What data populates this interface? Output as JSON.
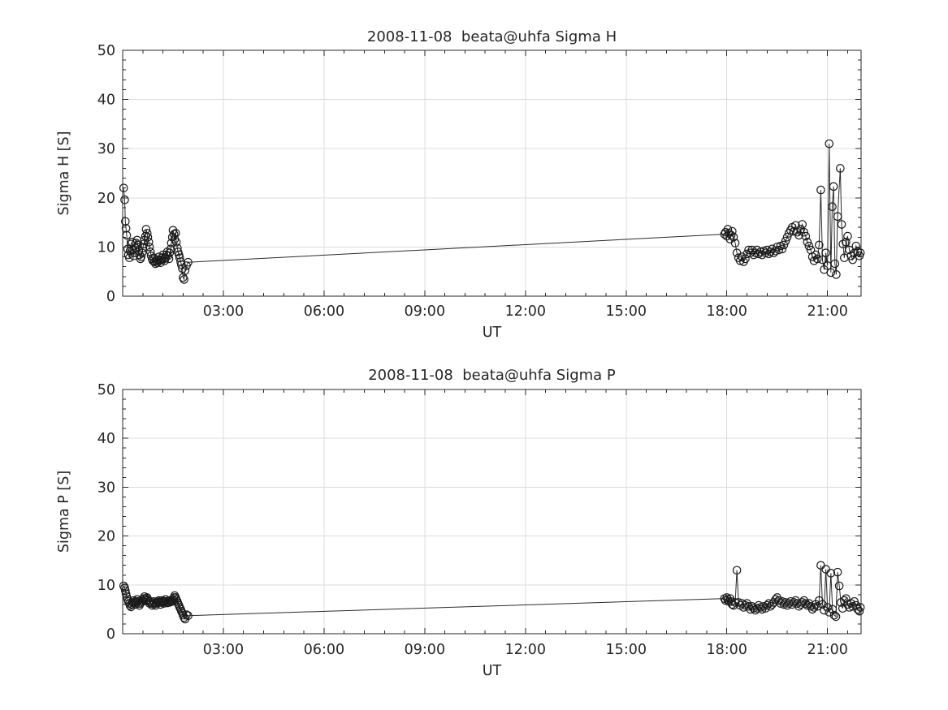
{
  "figure": {
    "background": "#ffffff",
    "text_color": "#262626",
    "axis_color": "#262626"
  },
  "chart_data": [
    {
      "type": "line",
      "title": "2008-11-08  beata@uhfa Sigma H",
      "xlabel": "UT",
      "ylabel": "Sigma H [S]",
      "xlim_hours": [
        0,
        22
      ],
      "ylim": [
        0,
        50
      ],
      "grid": true,
      "legend_position": "none",
      "marker": "open-circle",
      "line_color": "#2a2a2a",
      "marker_color": "#1a1a1a",
      "grid_color": "#dcdcdc",
      "x_ticks": [
        {
          "hour": 3,
          "label": "03:00"
        },
        {
          "hour": 6,
          "label": "06:00"
        },
        {
          "hour": 9,
          "label": "09:00"
        },
        {
          "hour": 12,
          "label": "12:00"
        },
        {
          "hour": 15,
          "label": "15:00"
        },
        {
          "hour": 18,
          "label": "18:00"
        },
        {
          "hour": 21,
          "label": "21:00"
        }
      ],
      "y_ticks": [
        0,
        10,
        20,
        30,
        40,
        50
      ],
      "x_minor_step_hours": 0.6,
      "y_minor_step": 2,
      "points": [
        [
          0.03,
          22.0
        ],
        [
          0.06,
          19.6
        ],
        [
          0.08,
          15.2
        ],
        [
          0.1,
          13.8
        ],
        [
          0.12,
          12.4
        ],
        [
          0.15,
          9.6
        ],
        [
          0.17,
          8.4
        ],
        [
          0.2,
          7.8
        ],
        [
          0.22,
          9.2
        ],
        [
          0.25,
          10.6
        ],
        [
          0.28,
          11.0
        ],
        [
          0.3,
          9.4
        ],
        [
          0.33,
          8.2
        ],
        [
          0.35,
          8.8
        ],
        [
          0.38,
          9.8
        ],
        [
          0.4,
          10.8
        ],
        [
          0.43,
          11.4
        ],
        [
          0.45,
          10.4
        ],
        [
          0.48,
          9.2
        ],
        [
          0.5,
          8.4
        ],
        [
          0.53,
          7.6
        ],
        [
          0.55,
          8.0
        ],
        [
          0.58,
          8.8
        ],
        [
          0.6,
          9.8
        ],
        [
          0.63,
          10.6
        ],
        [
          0.65,
          11.4
        ],
        [
          0.68,
          12.2
        ],
        [
          0.7,
          13.6
        ],
        [
          0.73,
          12.8
        ],
        [
          0.75,
          12.0
        ],
        [
          0.78,
          11.0
        ],
        [
          0.8,
          10.0
        ],
        [
          0.83,
          9.0
        ],
        [
          0.85,
          8.2
        ],
        [
          0.88,
          7.6
        ],
        [
          0.9,
          7.2
        ],
        [
          0.93,
          7.8
        ],
        [
          0.95,
          7.0
        ],
        [
          0.98,
          6.6
        ],
        [
          1.0,
          7.2
        ],
        [
          1.03,
          6.8
        ],
        [
          1.05,
          7.4
        ],
        [
          1.08,
          8.0
        ],
        [
          1.1,
          7.2
        ],
        [
          1.13,
          6.8
        ],
        [
          1.15,
          7.4
        ],
        [
          1.18,
          7.8
        ],
        [
          1.2,
          8.4
        ],
        [
          1.23,
          7.6
        ],
        [
          1.25,
          7.2
        ],
        [
          1.28,
          7.8
        ],
        [
          1.3,
          8.4
        ],
        [
          1.33,
          9.0
        ],
        [
          1.35,
          8.2
        ],
        [
          1.38,
          7.6
        ],
        [
          1.4,
          8.8
        ],
        [
          1.43,
          9.6
        ],
        [
          1.45,
          10.8
        ],
        [
          1.48,
          12.0
        ],
        [
          1.5,
          13.4
        ],
        [
          1.53,
          12.6
        ],
        [
          1.55,
          11.6
        ],
        [
          1.58,
          12.8
        ],
        [
          1.6,
          11.0
        ],
        [
          1.63,
          9.8
        ],
        [
          1.65,
          9.0
        ],
        [
          1.68,
          8.4
        ],
        [
          1.7,
          7.8
        ],
        [
          1.73,
          7.0
        ],
        [
          1.75,
          6.4
        ],
        [
          1.78,
          5.6
        ],
        [
          1.8,
          3.8
        ],
        [
          1.83,
          3.4
        ],
        [
          1.86,
          5.2
        ],
        [
          1.9,
          6.2
        ],
        [
          1.95,
          6.9
        ],
        [
          17.93,
          12.6
        ],
        [
          17.96,
          13.0
        ],
        [
          18.0,
          12.2
        ],
        [
          18.03,
          13.6
        ],
        [
          18.06,
          12.8
        ],
        [
          18.1,
          11.6
        ],
        [
          18.13,
          12.4
        ],
        [
          18.16,
          13.2
        ],
        [
          18.2,
          12.0
        ],
        [
          18.25,
          10.8
        ],
        [
          18.3,
          8.8
        ],
        [
          18.35,
          7.8
        ],
        [
          18.4,
          7.2
        ],
        [
          18.45,
          8.0
        ],
        [
          18.5,
          7.0
        ],
        [
          18.55,
          7.6
        ],
        [
          18.6,
          8.6
        ],
        [
          18.65,
          9.4
        ],
        [
          18.7,
          8.8
        ],
        [
          18.75,
          9.4
        ],
        [
          18.8,
          8.4
        ],
        [
          18.85,
          8.8
        ],
        [
          18.9,
          9.4
        ],
        [
          18.95,
          8.6
        ],
        [
          19.0,
          9.0
        ],
        [
          19.05,
          8.4
        ],
        [
          19.1,
          9.2
        ],
        [
          19.15,
          8.8
        ],
        [
          19.2,
          9.4
        ],
        [
          19.25,
          8.6
        ],
        [
          19.3,
          9.0
        ],
        [
          19.35,
          9.6
        ],
        [
          19.4,
          8.8
        ],
        [
          19.45,
          9.2
        ],
        [
          19.5,
          10.0
        ],
        [
          19.55,
          9.4
        ],
        [
          19.6,
          10.2
        ],
        [
          19.65,
          9.6
        ],
        [
          19.7,
          10.4
        ],
        [
          19.75,
          11.2
        ],
        [
          19.8,
          12.0
        ],
        [
          19.85,
          12.8
        ],
        [
          19.9,
          13.4
        ],
        [
          19.95,
          14.0
        ],
        [
          20.0,
          13.2
        ],
        [
          20.05,
          14.4
        ],
        [
          20.1,
          13.0
        ],
        [
          20.15,
          12.4
        ],
        [
          20.2,
          13.6
        ],
        [
          20.25,
          14.6
        ],
        [
          20.3,
          13.0
        ],
        [
          20.35,
          12.2
        ],
        [
          20.4,
          11.0
        ],
        [
          20.45,
          10.2
        ],
        [
          20.5,
          9.4
        ],
        [
          20.55,
          8.0
        ],
        [
          20.6,
          7.2
        ],
        [
          20.65,
          8.4
        ],
        [
          20.7,
          7.6
        ],
        [
          20.75,
          10.4
        ],
        [
          20.8,
          21.6
        ],
        [
          20.85,
          7.4
        ],
        [
          20.9,
          5.4
        ],
        [
          20.95,
          8.8
        ],
        [
          21.0,
          6.2
        ],
        [
          21.05,
          31.0
        ],
        [
          21.1,
          4.8
        ],
        [
          21.14,
          18.2
        ],
        [
          21.18,
          22.3
        ],
        [
          21.22,
          6.6
        ],
        [
          21.26,
          4.4
        ],
        [
          21.3,
          16.2
        ],
        [
          21.38,
          26.0
        ],
        [
          21.42,
          14.6
        ],
        [
          21.46,
          10.6
        ],
        [
          21.5,
          7.8
        ],
        [
          21.55,
          11.0
        ],
        [
          21.6,
          12.2
        ],
        [
          21.65,
          9.4
        ],
        [
          21.7,
          8.2
        ],
        [
          21.75,
          7.4
        ],
        [
          21.8,
          8.8
        ],
        [
          21.85,
          10.2
        ],
        [
          21.9,
          9.0
        ],
        [
          21.95,
          8.2
        ],
        [
          21.98,
          8.8
        ]
      ]
    },
    {
      "type": "line",
      "title": "2008-11-08  beata@uhfa Sigma P",
      "xlabel": "UT",
      "ylabel": "Sigma P [S]",
      "xlim_hours": [
        0,
        22
      ],
      "ylim": [
        0,
        50
      ],
      "grid": true,
      "legend_position": "none",
      "marker": "open-circle",
      "line_color": "#2a2a2a",
      "marker_color": "#1a1a1a",
      "grid_color": "#dcdcdc",
      "x_ticks": [
        {
          "hour": 3,
          "label": "03:00"
        },
        {
          "hour": 6,
          "label": "06:00"
        },
        {
          "hour": 9,
          "label": "09:00"
        },
        {
          "hour": 12,
          "label": "12:00"
        },
        {
          "hour": 15,
          "label": "15:00"
        },
        {
          "hour": 18,
          "label": "18:00"
        },
        {
          "hour": 21,
          "label": "21:00"
        }
      ],
      "y_ticks": [
        0,
        10,
        20,
        30,
        40,
        50
      ],
      "x_minor_step_hours": 0.6,
      "y_minor_step": 2,
      "points": [
        [
          0.03,
          9.8
        ],
        [
          0.06,
          9.4
        ],
        [
          0.08,
          8.8
        ],
        [
          0.1,
          8.2
        ],
        [
          0.12,
          7.6
        ],
        [
          0.15,
          7.0
        ],
        [
          0.17,
          6.6
        ],
        [
          0.2,
          6.2
        ],
        [
          0.22,
          5.8
        ],
        [
          0.25,
          5.5
        ],
        [
          0.28,
          6.0
        ],
        [
          0.3,
          6.4
        ],
        [
          0.33,
          6.8
        ],
        [
          0.35,
          6.4
        ],
        [
          0.38,
          6.0
        ],
        [
          0.4,
          6.6
        ],
        [
          0.43,
          7.0
        ],
        [
          0.45,
          6.6
        ],
        [
          0.48,
          6.2
        ],
        [
          0.5,
          5.8
        ],
        [
          0.53,
          6.2
        ],
        [
          0.55,
          6.6
        ],
        [
          0.58,
          7.0
        ],
        [
          0.6,
          6.6
        ],
        [
          0.63,
          7.2
        ],
        [
          0.65,
          7.6
        ],
        [
          0.68,
          7.2
        ],
        [
          0.7,
          6.8
        ],
        [
          0.73,
          7.4
        ],
        [
          0.75,
          7.0
        ],
        [
          0.78,
          6.6
        ],
        [
          0.8,
          6.2
        ],
        [
          0.83,
          6.6
        ],
        [
          0.85,
          6.2
        ],
        [
          0.88,
          5.8
        ],
        [
          0.9,
          6.2
        ],
        [
          0.93,
          6.6
        ],
        [
          0.95,
          6.2
        ],
        [
          0.98,
          5.8
        ],
        [
          1.0,
          6.2
        ],
        [
          1.03,
          6.6
        ],
        [
          1.05,
          6.4
        ],
        [
          1.08,
          6.8
        ],
        [
          1.1,
          6.4
        ],
        [
          1.13,
          6.0
        ],
        [
          1.15,
          6.4
        ],
        [
          1.18,
          6.8
        ],
        [
          1.2,
          6.6
        ],
        [
          1.23,
          6.2
        ],
        [
          1.25,
          6.6
        ],
        [
          1.28,
          7.0
        ],
        [
          1.3,
          6.6
        ],
        [
          1.33,
          6.3
        ],
        [
          1.35,
          6.7
        ],
        [
          1.38,
          6.4
        ],
        [
          1.4,
          6.8
        ],
        [
          1.43,
          6.5
        ],
        [
          1.45,
          6.9
        ],
        [
          1.48,
          6.6
        ],
        [
          1.5,
          7.0
        ],
        [
          1.53,
          7.4
        ],
        [
          1.55,
          7.8
        ],
        [
          1.58,
          7.4
        ],
        [
          1.6,
          7.0
        ],
        [
          1.63,
          6.6
        ],
        [
          1.65,
          6.2
        ],
        [
          1.68,
          5.8
        ],
        [
          1.7,
          5.4
        ],
        [
          1.73,
          5.0
        ],
        [
          1.75,
          4.6
        ],
        [
          1.78,
          4.2
        ],
        [
          1.8,
          3.8
        ],
        [
          1.83,
          3.3
        ],
        [
          1.86,
          3.0
        ],
        [
          1.9,
          3.9
        ],
        [
          1.95,
          3.7
        ],
        [
          17.93,
          7.2
        ],
        [
          17.96,
          6.8
        ],
        [
          18.0,
          7.4
        ],
        [
          18.03,
          7.0
        ],
        [
          18.06,
          6.6
        ],
        [
          18.1,
          7.2
        ],
        [
          18.13,
          6.6
        ],
        [
          18.16,
          6.0
        ],
        [
          18.2,
          5.8
        ],
        [
          18.25,
          6.4
        ],
        [
          18.3,
          13.0
        ],
        [
          18.35,
          6.4
        ],
        [
          18.4,
          5.8
        ],
        [
          18.45,
          6.2
        ],
        [
          18.5,
          5.4
        ],
        [
          18.55,
          5.8
        ],
        [
          18.6,
          6.2
        ],
        [
          18.65,
          5.6
        ],
        [
          18.7,
          5.0
        ],
        [
          18.75,
          5.6
        ],
        [
          18.8,
          5.2
        ],
        [
          18.85,
          4.8
        ],
        [
          18.9,
          5.2
        ],
        [
          18.95,
          5.8
        ],
        [
          19.0,
          5.4
        ],
        [
          19.05,
          5.0
        ],
        [
          19.1,
          5.6
        ],
        [
          19.15,
          5.2
        ],
        [
          19.2,
          5.8
        ],
        [
          19.25,
          6.2
        ],
        [
          19.3,
          5.6
        ],
        [
          19.35,
          6.0
        ],
        [
          19.4,
          6.4
        ],
        [
          19.45,
          7.0
        ],
        [
          19.5,
          7.4
        ],
        [
          19.55,
          6.8
        ],
        [
          19.6,
          6.2
        ],
        [
          19.65,
          6.6
        ],
        [
          19.7,
          6.0
        ],
        [
          19.75,
          6.4
        ],
        [
          19.8,
          5.8
        ],
        [
          19.85,
          6.2
        ],
        [
          19.9,
          6.6
        ],
        [
          19.95,
          6.0
        ],
        [
          20.0,
          6.4
        ],
        [
          20.05,
          6.8
        ],
        [
          20.1,
          6.2
        ],
        [
          20.15,
          5.6
        ],
        [
          20.2,
          6.0
        ],
        [
          20.25,
          6.4
        ],
        [
          20.3,
          6.8
        ],
        [
          20.35,
          6.2
        ],
        [
          20.4,
          5.8
        ],
        [
          20.45,
          6.2
        ],
        [
          20.5,
          5.6
        ],
        [
          20.55,
          5.0
        ],
        [
          20.6,
          5.4
        ],
        [
          20.65,
          6.0
        ],
        [
          20.7,
          5.6
        ],
        [
          20.75,
          6.8
        ],
        [
          20.8,
          14.0
        ],
        [
          20.85,
          6.0
        ],
        [
          20.9,
          4.8
        ],
        [
          20.95,
          13.2
        ],
        [
          21.0,
          5.4
        ],
        [
          21.05,
          4.4
        ],
        [
          21.1,
          12.4
        ],
        [
          21.15,
          5.0
        ],
        [
          21.2,
          3.8
        ],
        [
          21.25,
          3.5
        ],
        [
          21.3,
          12.6
        ],
        [
          21.35,
          9.8
        ],
        [
          21.4,
          6.4
        ],
        [
          21.45,
          5.2
        ],
        [
          21.5,
          6.8
        ],
        [
          21.55,
          7.2
        ],
        [
          21.6,
          6.0
        ],
        [
          21.65,
          5.4
        ],
        [
          21.7,
          6.2
        ],
        [
          21.75,
          5.6
        ],
        [
          21.8,
          6.6
        ],
        [
          21.85,
          5.8
        ],
        [
          21.9,
          5.0
        ],
        [
          21.95,
          4.6
        ],
        [
          21.98,
          5.4
        ]
      ]
    }
  ]
}
